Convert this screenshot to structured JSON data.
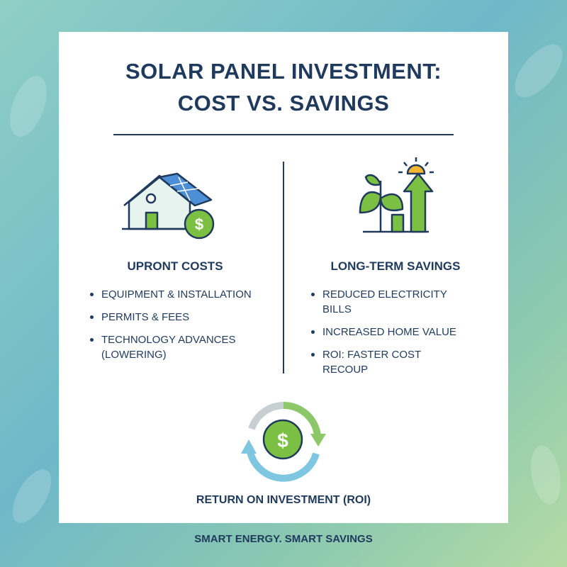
{
  "title": {
    "line1": "SOLAR PANEL INVESTMENT:",
    "line2": "COST VS. SAVINGS"
  },
  "left": {
    "heading": "UPRONT COSTS",
    "items": [
      "EQUIPMENT & INSTALLATION",
      "PERMITS & FEES",
      "TECHNOLOGY ADVANCES (LOWERING)"
    ]
  },
  "right": {
    "heading": "LONG-TERM SAVINGS",
    "items": [
      "REDUCED ELECTRICITY BILLS",
      "INCREASED HOME VALUE",
      "ROI: FASTER COST RECOUP"
    ]
  },
  "roi": {
    "label": "RETURN ON INVESTMENT (ROI)"
  },
  "footer": {
    "text": "SMART ENERGY. SMART SAVINGS"
  }
}
